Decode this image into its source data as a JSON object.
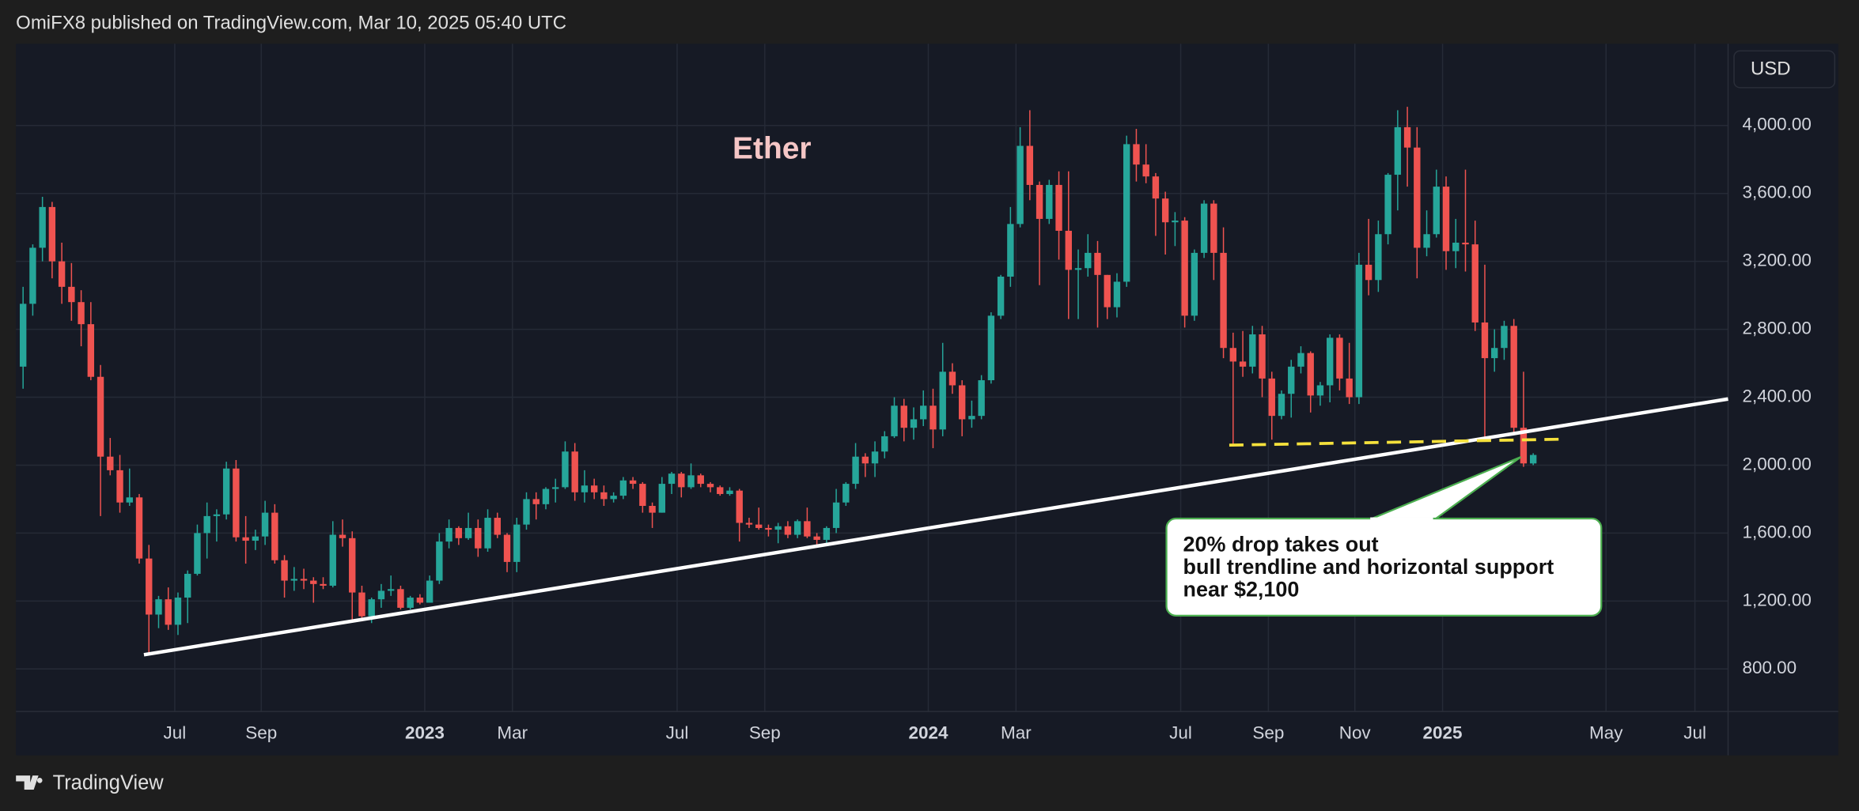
{
  "header": "OmiFX8 published on TradingView.com, Mar 10, 2025 05:40 UTC",
  "brand": "TradingView",
  "chart_data": {
    "type": "candlestick",
    "title": "Ether",
    "currency": "USD",
    "up_color": "#26a69a",
    "down_color": "#ef5350",
    "grid": true,
    "annotation": [
      "20% drop takes out",
      "bull trendline and horizontal support",
      "near $2,100"
    ],
    "ylim": [
      549,
      4481
    ],
    "yticks": [
      {
        "value": 800,
        "label": "800.00"
      },
      {
        "value": 1200,
        "label": "1,200.00"
      },
      {
        "value": 1600,
        "label": "1,600.00"
      },
      {
        "value": 2000,
        "label": "2,000.00"
      },
      {
        "value": 2400,
        "label": "2,400.00"
      },
      {
        "value": 2800,
        "label": "2,800.00"
      },
      {
        "value": 3200,
        "label": "3,200.00"
      },
      {
        "value": 3600,
        "label": "3,600.00"
      },
      {
        "value": 4000,
        "label": "4,000.00"
      }
    ],
    "xticks": [
      "Jul",
      "Sep",
      "2023",
      "Mar",
      "Jul",
      "Sep",
      "2024",
      "Mar",
      "Jul",
      "Sep",
      "Nov",
      "2025",
      "May",
      "Jul"
    ],
    "open": [
      2580,
      2950,
      3280,
      3520,
      3200,
      3050,
      2960,
      2830,
      2520,
      2050,
      1970,
      1780,
      1810,
      1450,
      1120,
      1210,
      1060,
      1220,
      1360,
      1600,
      1700,
      1710,
      1980,
      1575,
      1555,
      1580,
      1720,
      1440,
      1320,
      1330,
      1320,
      1300,
      1290,
      1590,
      1570,
      1250,
      1110,
      1210,
      1260,
      1270,
      1160,
      1220,
      1190,
      1320,
      1550,
      1630,
      1570,
      1630,
      1510,
      1690,
      1590,
      1430,
      1650,
      1800,
      1770,
      1860,
      1870,
      2080,
      1840,
      1880,
      1840,
      1800,
      1820,
      1910,
      1890,
      1760,
      1720,
      1890,
      1950,
      1870,
      1940,
      1890,
      1870,
      1830,
      1850,
      1660,
      1650,
      1630,
      1620,
      1640,
      1590,
      1670,
      1580,
      1560,
      1630,
      1780,
      1890,
      2050,
      2010,
      2080,
      2170,
      2350,
      2220,
      2270,
      2350,
      2210,
      2550,
      2470,
      2270,
      2290,
      2500,
      2880,
      3110,
      3420,
      3880,
      3650,
      3450,
      3650,
      3380,
      3150,
      3160,
      3250,
      3120,
      2930,
      3080,
      3890,
      3770,
      3700,
      3570,
      3430,
      3440,
      2880,
      3250,
      3540,
      3250,
      2690,
      2610,
      2580,
      2770,
      2510,
      2290,
      2420,
      2580,
      2660,
      2410,
      2470,
      2750,
      2510,
      2400,
      3180,
      3090,
      3360,
      3710,
      3990,
      3870,
      3280,
      3360,
      3640,
      3260,
      3310,
      3300,
      2840,
      2630,
      2690,
      2820,
      2220,
      2010
    ],
    "high": [
      3050,
      3300,
      3580,
      3550,
      3310,
      3190,
      3030,
      2960,
      2590,
      2160,
      2060,
      1980,
      1830,
      1530,
      1230,
      1280,
      1250,
      1380,
      1650,
      1780,
      1740,
      2020,
      2030,
      1700,
      1620,
      1790,
      1770,
      1470,
      1400,
      1390,
      1340,
      1340,
      1670,
      1680,
      1610,
      1290,
      1220,
      1300,
      1350,
      1290,
      1230,
      1240,
      1350,
      1600,
      1680,
      1640,
      1720,
      1680,
      1740,
      1720,
      1600,
      1690,
      1840,
      1840,
      1870,
      1920,
      2140,
      2130,
      1970,
      1920,
      1880,
      1840,
      1930,
      1930,
      1900,
      1780,
      1930,
      1960,
      1960,
      2010,
      1950,
      1900,
      1880,
      1870,
      1860,
      1690,
      1750,
      1650,
      1660,
      1670,
      1680,
      1750,
      1600,
      1640,
      1860,
      1900,
      2130,
      2070,
      2140,
      2200,
      2400,
      2390,
      2340,
      2440,
      2450,
      2720,
      2600,
      2500,
      2380,
      2530,
      2900,
      3120,
      3520,
      3990,
      4090,
      3670,
      3680,
      3730,
      3730,
      3270,
      3360,
      3320,
      3120,
      3130,
      3940,
      3980,
      3890,
      3720,
      3610,
      3490,
      3460,
      3270,
      3560,
      3560,
      3400,
      2780,
      2790,
      2820,
      2820,
      2550,
      2440,
      2620,
      2700,
      2670,
      2490,
      2770,
      2770,
      2720,
      3250,
      3450,
      3440,
      3720,
      4090,
      4110,
      3990,
      3500,
      3740,
      3700,
      3450,
      3740,
      3440,
      3180,
      2800,
      2850,
      2860,
      2550,
      2070
    ],
    "low": [
      2450,
      2880,
      3200,
      3100,
      2950,
      2850,
      2700,
      2500,
      1700,
      1940,
      1720,
      1760,
      1420,
      880,
      1040,
      1030,
      1000,
      1070,
      1350,
      1450,
      1550,
      1680,
      1550,
      1420,
      1500,
      1530,
      1420,
      1220,
      1260,
      1270,
      1190,
      1270,
      1280,
      1520,
      1080,
      1080,
      1070,
      1160,
      1230,
      1150,
      1150,
      1180,
      1190,
      1300,
      1510,
      1530,
      1560,
      1460,
      1490,
      1570,
      1370,
      1370,
      1620,
      1680,
      1740,
      1780,
      1860,
      1790,
      1780,
      1800,
      1760,
      1780,
      1800,
      1860,
      1720,
      1630,
      1720,
      1830,
      1810,
      1860,
      1870,
      1840,
      1820,
      1820,
      1550,
      1630,
      1620,
      1580,
      1540,
      1570,
      1570,
      1570,
      1520,
      1540,
      1600,
      1760,
      1860,
      1930,
      1930,
      2040,
      2160,
      2140,
      2150,
      2230,
      2100,
      2170,
      2420,
      2170,
      2220,
      2270,
      2480,
      2860,
      3050,
      3400,
      3560,
      3060,
      3420,
      3210,
      2860,
      2860,
      3110,
      2810,
      2860,
      2870,
      3050,
      3670,
      3660,
      3350,
      3240,
      3290,
      2810,
      2850,
      3220,
      3090,
      2630,
      2110,
      2520,
      2540,
      2400,
      2150,
      2270,
      2280,
      2540,
      2310,
      2350,
      2370,
      2440,
      2360,
      2360,
      3000,
      3020,
      3300,
      3500,
      3640,
      3100,
      3230,
      3340,
      3150,
      3160,
      3140,
      2790,
      2150,
      2550,
      2620,
      2180,
      1990,
      2000
    ],
    "close": [
      2950,
      3280,
      3520,
      3200,
      3050,
      2960,
      2830,
      2520,
      2050,
      1970,
      1780,
      1810,
      1450,
      1120,
      1210,
      1060,
      1220,
      1360,
      1600,
      1700,
      1710,
      1980,
      1575,
      1555,
      1580,
      1720,
      1440,
      1320,
      1330,
      1320,
      1300,
      1290,
      1590,
      1570,
      1250,
      1110,
      1210,
      1260,
      1270,
      1160,
      1220,
      1190,
      1320,
      1550,
      1630,
      1570,
      1630,
      1510,
      1690,
      1590,
      1430,
      1650,
      1800,
      1770,
      1860,
      1870,
      2080,
      1840,
      1880,
      1840,
      1800,
      1820,
      1910,
      1890,
      1760,
      1720,
      1890,
      1950,
      1870,
      1940,
      1890,
      1870,
      1830,
      1850,
      1660,
      1650,
      1630,
      1620,
      1640,
      1590,
      1670,
      1580,
      1560,
      1630,
      1780,
      1890,
      2050,
      2010,
      2080,
      2170,
      2350,
      2220,
      2270,
      2350,
      2210,
      2550,
      2470,
      2270,
      2290,
      2500,
      2880,
      3110,
      3420,
      3880,
      3650,
      3450,
      3650,
      3380,
      3150,
      3160,
      3250,
      3120,
      2930,
      3080,
      3890,
      3770,
      3700,
      3570,
      3430,
      3440,
      2880,
      3250,
      3540,
      3250,
      2690,
      2610,
      2580,
      2770,
      2510,
      2290,
      2420,
      2580,
      2660,
      2410,
      2470,
      2750,
      2510,
      2400,
      3180,
      3090,
      3360,
      3710,
      3990,
      3870,
      3280,
      3360,
      3640,
      3260,
      3310,
      3300,
      2840,
      2630,
      2690,
      2820,
      2220,
      2010,
      2060
    ]
  }
}
